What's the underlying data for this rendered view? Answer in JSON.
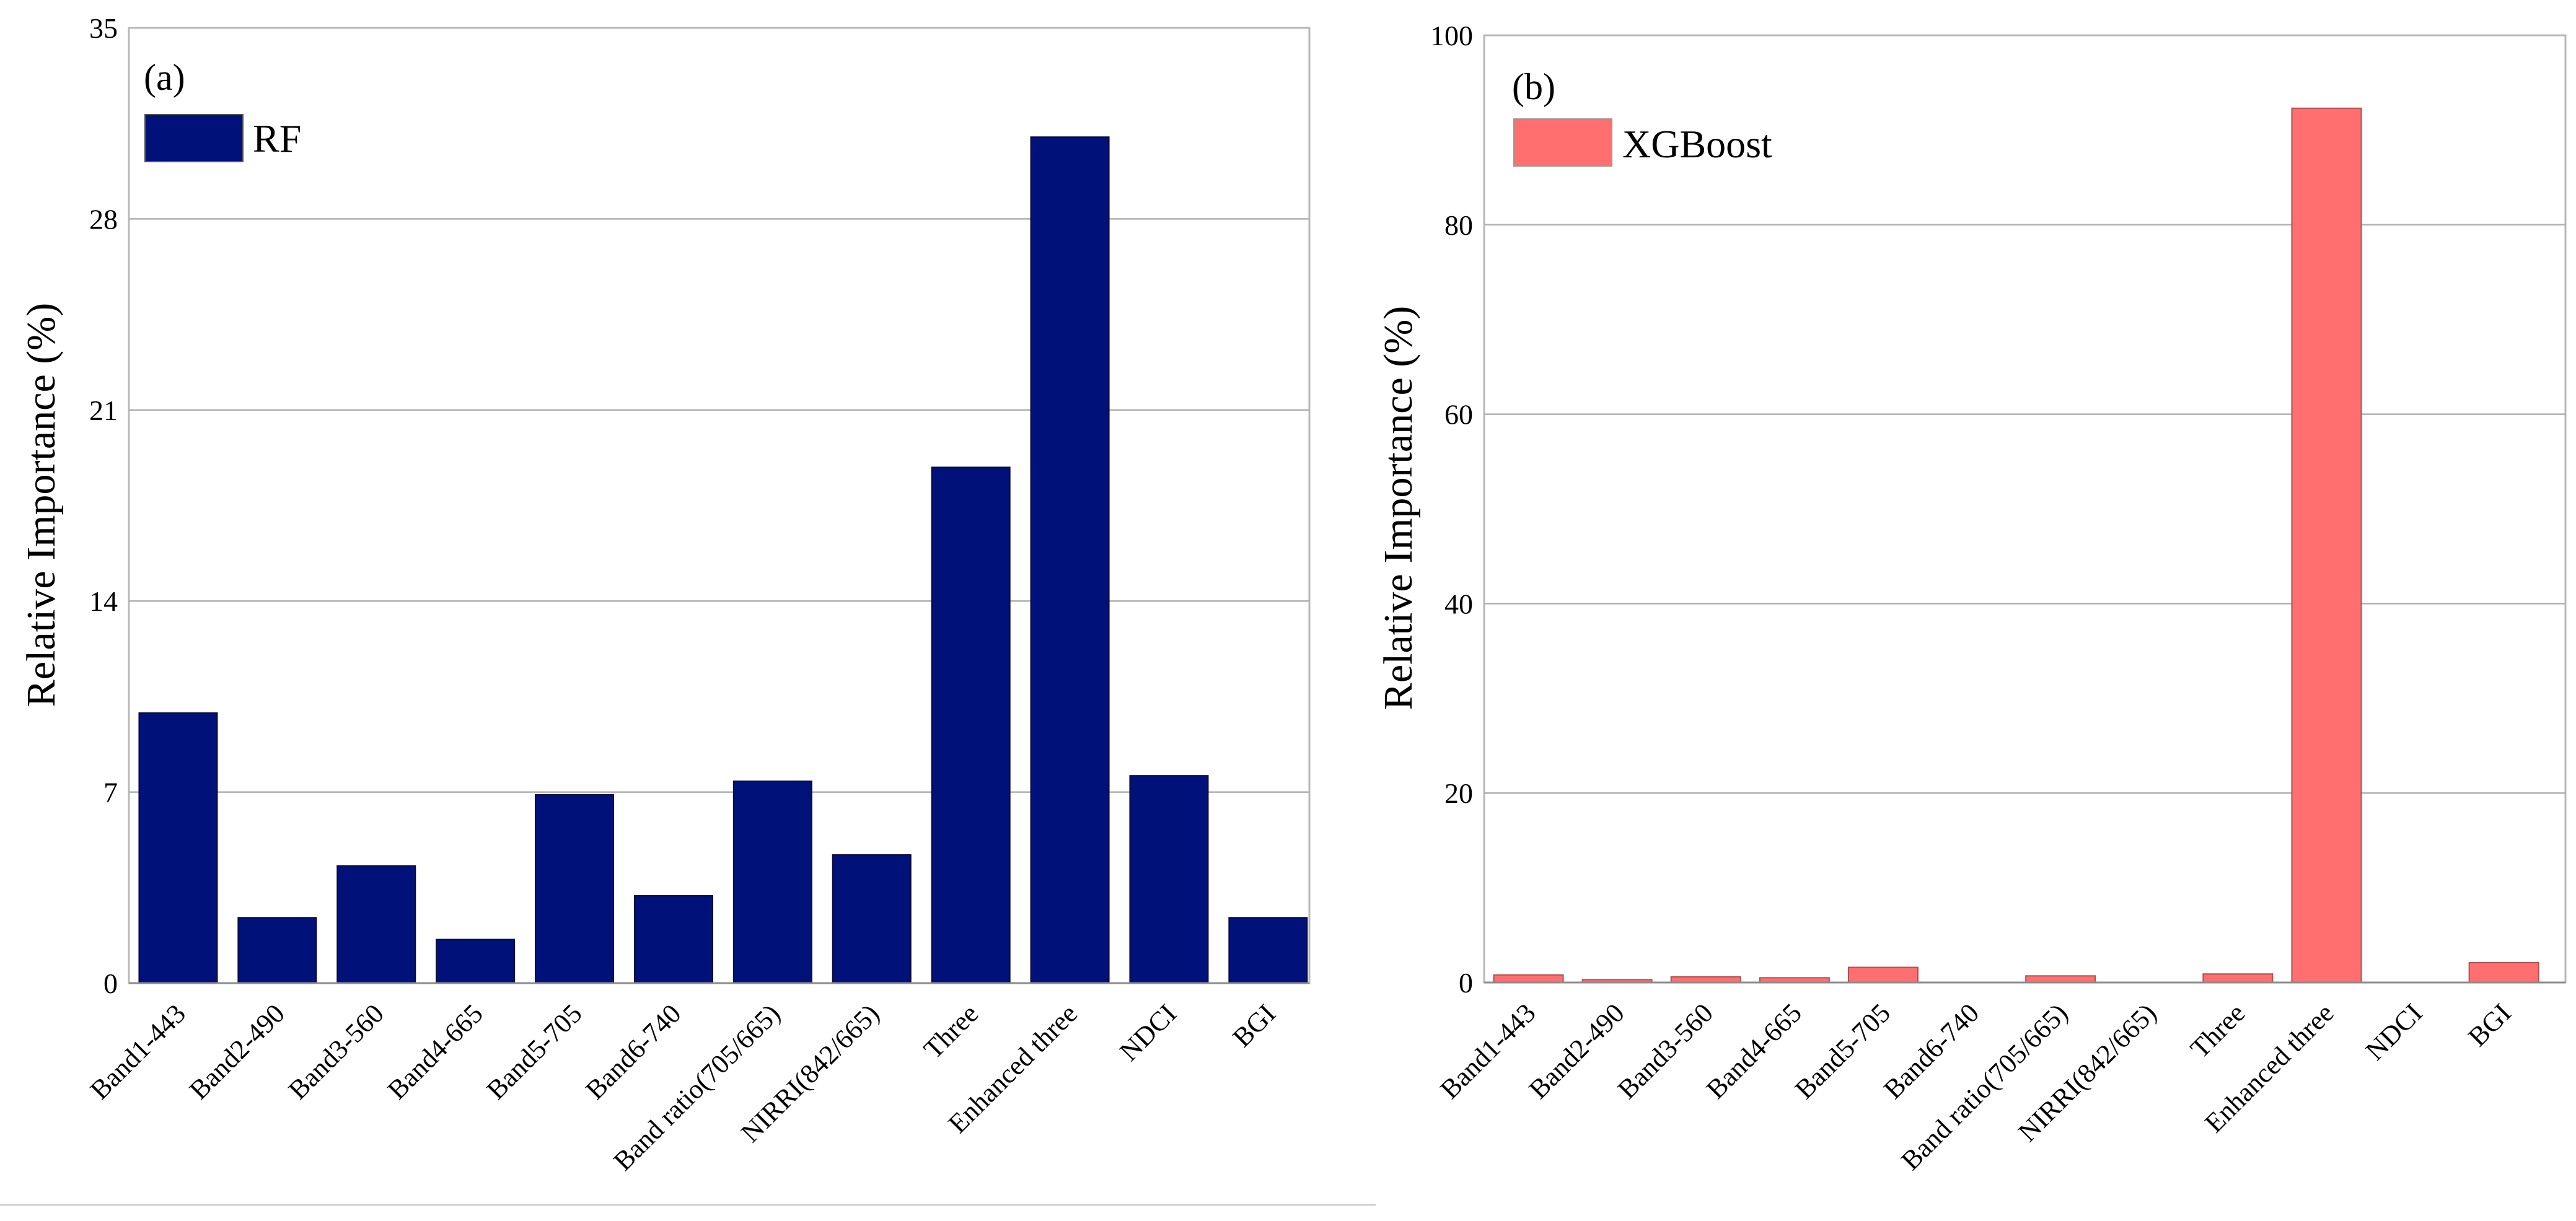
{
  "chart_data": [
    {
      "type": "bar",
      "panel_label": "(a)",
      "title": "",
      "xlabel": "",
      "ylabel": "Relative Importance (%)",
      "categories": [
        "Band1-443",
        "Band2-490",
        "Band3-560",
        "Band4-665",
        "Band5-705",
        "Band6-740",
        "Band ratio(705/665)",
        "NIRRI(842/665)",
        "Three",
        "Enhanced three",
        "NDCI",
        "BGI"
      ],
      "series": [
        {
          "name": "RF",
          "color": "#00127a",
          "values": [
            9.9,
            2.4,
            4.3,
            1.6,
            6.9,
            3.2,
            7.4,
            4.7,
            18.9,
            31.0,
            7.6,
            2.4
          ]
        }
      ],
      "ylim": [
        0,
        35
      ],
      "yticks": [
        0,
        7,
        14,
        21,
        28,
        35
      ],
      "grid": true,
      "legend": "top-left"
    },
    {
      "type": "bar",
      "panel_label": "(b)",
      "title": "",
      "xlabel": "",
      "ylabel": "Relative Importance (%)",
      "categories": [
        "Band1-443",
        "Band2-490",
        "Band3-560",
        "Band4-665",
        "Band5-705",
        "Band6-740",
        "Band ratio(705/665)",
        "NIRRI(842/665)",
        "Three",
        "Enhanced three",
        "NDCI",
        "BGI"
      ],
      "series": [
        {
          "name": "XGBoost",
          "color": "#ff6f6f",
          "values": [
            0.8,
            0.3,
            0.6,
            0.5,
            1.6,
            0,
            0.7,
            0,
            0.9,
            92.3,
            0,
            2.1
          ]
        }
      ],
      "ylim": [
        0,
        100
      ],
      "yticks": [
        0,
        20,
        40,
        60,
        80,
        100
      ],
      "grid": true,
      "legend": "top-left"
    }
  ]
}
